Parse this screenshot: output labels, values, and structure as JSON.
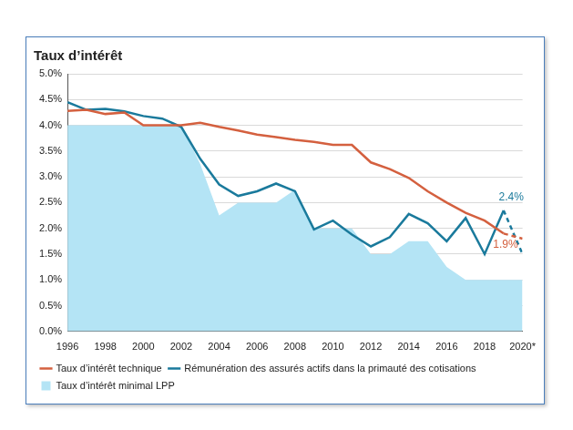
{
  "chart_data": {
    "type": "line",
    "title": "Taux d’intérêt",
    "x": [
      1996,
      1997,
      1998,
      1999,
      2000,
      2001,
      2002,
      2003,
      2004,
      2005,
      2006,
      2007,
      2008,
      2009,
      2010,
      2011,
      2012,
      2013,
      2014,
      2015,
      2016,
      2017,
      2018,
      2019,
      2020
    ],
    "series": [
      {
        "name": "Taux d’intérêt minimal LPP",
        "type": "area",
        "color": "#b4e4f5",
        "values": [
          4.0,
          4.0,
          4.0,
          4.0,
          4.0,
          4.0,
          4.0,
          3.25,
          2.25,
          2.5,
          2.5,
          2.5,
          2.75,
          2.0,
          2.0,
          2.0,
          1.5,
          1.5,
          1.75,
          1.75,
          1.25,
          1.0,
          1.0,
          1.0,
          1.0
        ]
      },
      {
        "name": "Taux d’intérêt technique",
        "type": "line",
        "color": "#d4603f",
        "values": [
          4.28,
          4.3,
          4.22,
          4.25,
          4.0,
          4.0,
          4.0,
          4.05,
          3.97,
          3.9,
          3.82,
          3.77,
          3.72,
          3.68,
          3.62,
          3.62,
          3.28,
          3.15,
          2.98,
          2.72,
          2.5,
          2.3,
          2.15,
          1.9,
          1.8
        ]
      },
      {
        "name": "Rémunération des assurés actifs dans la primauté des cotisations",
        "type": "line",
        "color": "#1a7a9c",
        "values": [
          4.45,
          4.3,
          4.32,
          4.27,
          4.18,
          4.13,
          3.97,
          3.35,
          2.85,
          2.63,
          2.72,
          2.87,
          2.72,
          1.98,
          2.15,
          1.88,
          1.65,
          1.83,
          2.28,
          2.1,
          1.75,
          2.2,
          1.5,
          2.35,
          1.5
        ]
      }
    ],
    "xlim": [
      1996,
      2020
    ],
    "xticks": [
      1996,
      1998,
      2000,
      2002,
      2004,
      2006,
      2008,
      2010,
      2012,
      2014,
      2016,
      2018,
      {
        "value": 2020,
        "label": "2020*"
      }
    ],
    "ylim": [
      0,
      5
    ],
    "yticks": [
      {
        "value": 0,
        "label": "0.0%"
      },
      {
        "value": 0.5,
        "label": "0.5%"
      },
      {
        "value": 1,
        "label": "1.0%"
      },
      {
        "value": 1.5,
        "label": "1.5%"
      },
      {
        "value": 2,
        "label": "2.0%"
      },
      {
        "value": 2.5,
        "label": "2.5%"
      },
      {
        "value": 3,
        "label": "3.0%"
      },
      {
        "value": 3.5,
        "label": "3.5%"
      },
      {
        "value": 4,
        "label": "4.0%"
      },
      {
        "value": 4.5,
        "label": "4.5%"
      },
      {
        "value": 5,
        "label": "5.0%"
      }
    ],
    "annotations": [
      {
        "text": "2.4%",
        "x": 2019.4,
        "y": 2.6,
        "color": "#1a7a9c"
      },
      {
        "text": "1.9%",
        "x": 2019.1,
        "y": 1.68,
        "color": "#d4603f"
      }
    ],
    "grid": true,
    "legend": "bottom"
  }
}
